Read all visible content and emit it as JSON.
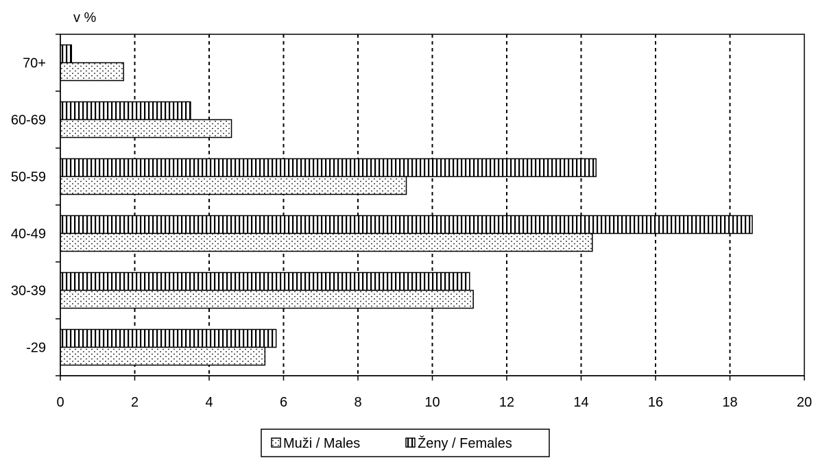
{
  "chart_data": {
    "type": "bar",
    "orientation": "horizontal",
    "ylabel": "v %",
    "categories": [
      "-29",
      "30-39",
      "40-49",
      "50-59",
      "60-69",
      "70+"
    ],
    "series": [
      {
        "name": "Muži / Males",
        "pattern": "dots",
        "values": [
          5.5,
          11.1,
          14.3,
          9.3,
          4.6,
          1.7
        ]
      },
      {
        "name": "Ženy / Females",
        "pattern": "vertical-stripes",
        "values": [
          5.8,
          11.0,
          18.6,
          14.4,
          3.5,
          0.3
        ]
      }
    ],
    "xlim": [
      0,
      20
    ],
    "xticks": [
      "0",
      "2",
      "4",
      "6",
      "8",
      "10",
      "12",
      "14",
      "16",
      "18",
      "20"
    ],
    "grid": "vertical-dashed",
    "legend": {
      "placement": "bottom",
      "items": [
        "Muži / Males",
        "Ženy / Females"
      ]
    }
  }
}
